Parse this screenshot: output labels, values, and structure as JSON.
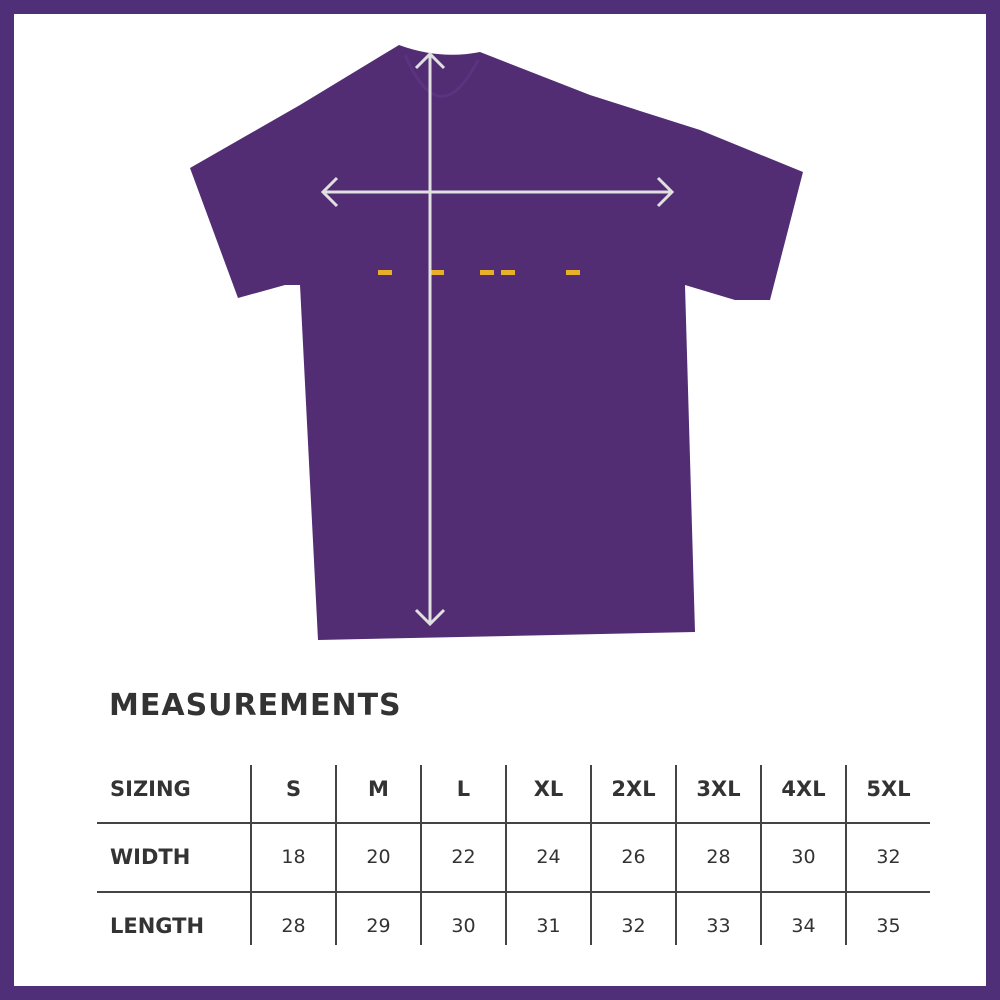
{
  "colors": {
    "frame": "#4f2f77",
    "shirt": "#522d73",
    "arrows": "#e0e0e0",
    "accent": "#e8b02a"
  },
  "title": "MEASUREMENTS",
  "table": {
    "header_label": "SIZING",
    "sizes": [
      "S",
      "M",
      "L",
      "XL",
      "2XL",
      "3XL",
      "4XL",
      "5XL"
    ],
    "rows": [
      {
        "label": "WIDTH",
        "values": [
          "18",
          "20",
          "22",
          "24",
          "26",
          "28",
          "30",
          "32"
        ]
      },
      {
        "label": "LENGTH",
        "values": [
          "28",
          "29",
          "30",
          "31",
          "32",
          "33",
          "34",
          "35"
        ]
      }
    ]
  }
}
